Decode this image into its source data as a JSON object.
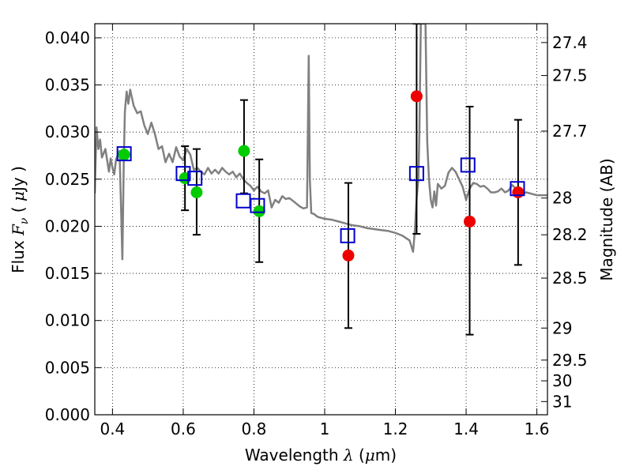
{
  "chart_data": {
    "type": "scatter",
    "x_label": "Wavelength λ (μm)",
    "y_label": "Flux F_ν (μJy)",
    "y2_label": "Magnitude (AB)",
    "xlim": [
      0.35,
      1.63
    ],
    "ylim": [
      0.0,
      0.0415
    ],
    "grid": true,
    "x_ticks": [
      0.4,
      0.6,
      0.8,
      1.0,
      1.2,
      1.4,
      1.6
    ],
    "x_tick_labels": [
      "0.4",
      "0.6",
      "0.8",
      "1",
      "1.2",
      "1.4",
      "1.6"
    ],
    "y_ticks": [
      0.0,
      0.005,
      0.01,
      0.015,
      0.02,
      0.025,
      0.03,
      0.035,
      0.04
    ],
    "y_tick_labels": [
      "0.000",
      "0.005",
      "0.010",
      "0.015",
      "0.020",
      "0.025",
      "0.030",
      "0.035",
      "0.040"
    ],
    "mag_ticks": [
      {
        "flux": 0.0395,
        "label": "27.4"
      },
      {
        "flux": 0.036,
        "label": "27.5"
      },
      {
        "flux": 0.0301,
        "label": "27.7"
      },
      {
        "flux": 0.023,
        "label": "28"
      },
      {
        "flux": 0.0191,
        "label": "28.2"
      },
      {
        "flux": 0.0145,
        "label": "28.5"
      },
      {
        "flux": 0.0092,
        "label": "29"
      },
      {
        "flux": 0.0058,
        "label": "29.5"
      },
      {
        "flux": 0.0036,
        "label": "30"
      },
      {
        "flux": 0.0014,
        "label": "31"
      }
    ],
    "model_spectrum": {
      "color": "#808080",
      "points": [
        [
          0.35,
          0.0235
        ],
        [
          0.355,
          0.0305
        ],
        [
          0.36,
          0.0282
        ],
        [
          0.365,
          0.0292
        ],
        [
          0.37,
          0.0273
        ],
        [
          0.38,
          0.0282
        ],
        [
          0.39,
          0.0258
        ],
        [
          0.395,
          0.0272
        ],
        [
          0.4,
          0.0262
        ],
        [
          0.405,
          0.0255
        ],
        [
          0.41,
          0.0271
        ],
        [
          0.42,
          0.028
        ],
        [
          0.425,
          0.0208
        ],
        [
          0.428,
          0.0165
        ],
        [
          0.432,
          0.027
        ],
        [
          0.435,
          0.0322
        ],
        [
          0.44,
          0.0343
        ],
        [
          0.445,
          0.033
        ],
        [
          0.45,
          0.0345
        ],
        [
          0.46,
          0.0328
        ],
        [
          0.47,
          0.032
        ],
        [
          0.48,
          0.0322
        ],
        [
          0.49,
          0.0307
        ],
        [
          0.5,
          0.0298
        ],
        [
          0.51,
          0.031
        ],
        [
          0.52,
          0.0298
        ],
        [
          0.53,
          0.0282
        ],
        [
          0.54,
          0.0285
        ],
        [
          0.55,
          0.0268
        ],
        [
          0.56,
          0.0277
        ],
        [
          0.57,
          0.0268
        ],
        [
          0.58,
          0.0284
        ],
        [
          0.59,
          0.0274
        ],
        [
          0.6,
          0.027
        ],
        [
          0.61,
          0.0282
        ],
        [
          0.62,
          0.0276
        ],
        [
          0.63,
          0.026
        ],
        [
          0.64,
          0.0262
        ],
        [
          0.65,
          0.0258
        ],
        [
          0.66,
          0.0255
        ],
        [
          0.67,
          0.0262
        ],
        [
          0.68,
          0.0256
        ],
        [
          0.69,
          0.026
        ],
        [
          0.7,
          0.0256
        ],
        [
          0.71,
          0.0262
        ],
        [
          0.72,
          0.0258
        ],
        [
          0.73,
          0.0255
        ],
        [
          0.74,
          0.0258
        ],
        [
          0.75,
          0.0252
        ],
        [
          0.76,
          0.0256
        ],
        [
          0.77,
          0.025
        ],
        [
          0.78,
          0.0246
        ],
        [
          0.79,
          0.0243
        ],
        [
          0.8,
          0.0238
        ],
        [
          0.81,
          0.0242
        ],
        [
          0.82,
          0.0237
        ],
        [
          0.83,
          0.0235
        ],
        [
          0.84,
          0.0238
        ],
        [
          0.85,
          0.022
        ],
        [
          0.86,
          0.0228
        ],
        [
          0.87,
          0.0225
        ],
        [
          0.88,
          0.0232
        ],
        [
          0.89,
          0.0229
        ],
        [
          0.9,
          0.023
        ],
        [
          0.91,
          0.0227
        ],
        [
          0.92,
          0.0224
        ],
        [
          0.93,
          0.0221
        ],
        [
          0.94,
          0.0219
        ],
        [
          0.95,
          0.022
        ],
        [
          0.955,
          0.0381
        ],
        [
          0.958,
          0.025
        ],
        [
          0.962,
          0.0214
        ],
        [
          0.97,
          0.0213
        ],
        [
          0.98,
          0.021
        ],
        [
          1.0,
          0.0208
        ],
        [
          1.02,
          0.0207
        ],
        [
          1.04,
          0.0205
        ],
        [
          1.06,
          0.0203
        ],
        [
          1.08,
          0.0201
        ],
        [
          1.1,
          0.02
        ],
        [
          1.12,
          0.0198
        ],
        [
          1.14,
          0.0197
        ],
        [
          1.16,
          0.0196
        ],
        [
          1.18,
          0.0195
        ],
        [
          1.2,
          0.0193
        ],
        [
          1.22,
          0.019
        ],
        [
          1.24,
          0.0185
        ],
        [
          1.25,
          0.0173
        ],
        [
          1.255,
          0.0195
        ],
        [
          1.26,
          0.023
        ],
        [
          1.265,
          0.025
        ],
        [
          1.268,
          0.03
        ],
        [
          1.272,
          0.0415
        ],
        [
          1.285,
          0.0415
        ],
        [
          1.29,
          0.029
        ],
        [
          1.295,
          0.025
        ],
        [
          1.3,
          0.0228
        ],
        [
          1.305,
          0.022
        ],
        [
          1.31,
          0.0237
        ],
        [
          1.315,
          0.0222
        ],
        [
          1.32,
          0.0245
        ],
        [
          1.33,
          0.024
        ],
        [
          1.34,
          0.0243
        ],
        [
          1.35,
          0.0257
        ],
        [
          1.36,
          0.0262
        ],
        [
          1.37,
          0.0258
        ],
        [
          1.38,
          0.025
        ],
        [
          1.39,
          0.0242
        ],
        [
          1.4,
          0.0228
        ],
        [
          1.41,
          0.024
        ],
        [
          1.42,
          0.0246
        ],
        [
          1.43,
          0.0245
        ],
        [
          1.44,
          0.0242
        ],
        [
          1.45,
          0.0243
        ],
        [
          1.46,
          0.024
        ],
        [
          1.47,
          0.0236
        ],
        [
          1.48,
          0.0236
        ],
        [
          1.49,
          0.0237
        ],
        [
          1.5,
          0.024
        ],
        [
          1.51,
          0.0236
        ],
        [
          1.52,
          0.0238
        ],
        [
          1.53,
          0.0244
        ],
        [
          1.54,
          0.024
        ],
        [
          1.55,
          0.0238
        ],
        [
          1.56,
          0.0235
        ],
        [
          1.57,
          0.0236
        ],
        [
          1.58,
          0.0235
        ],
        [
          1.59,
          0.0234
        ],
        [
          1.6,
          0.0233
        ],
        [
          1.63,
          0.0233
        ]
      ]
    },
    "series": [
      {
        "marker": "square",
        "color": "#0000cc",
        "points": [
          [
            0.433,
            0.0277
          ],
          [
            0.6,
            0.0256
          ],
          [
            0.633,
            0.0251
          ],
          [
            0.77,
            0.0227
          ],
          [
            0.81,
            0.0222
          ],
          [
            1.065,
            0.019
          ],
          [
            1.26,
            0.0256
          ],
          [
            1.405,
            0.0265
          ],
          [
            1.545,
            0.024
          ]
        ]
      },
      {
        "marker": "circle",
        "color": "#00cc00",
        "points": [
          [
            0.433,
            0.0276
          ],
          [
            0.605,
            0.0251
          ],
          [
            0.638,
            0.0236
          ],
          [
            0.772,
            0.028
          ],
          [
            0.815,
            0.0216
          ]
        ],
        "errors": [
          [
            0.605,
            0.0217,
            0.0285
          ],
          [
            0.638,
            0.0191,
            0.0282
          ],
          [
            0.772,
            0.0235,
            0.0334
          ],
          [
            0.815,
            0.0162,
            0.0271
          ]
        ]
      },
      {
        "marker": "circle",
        "color": "#ee0000",
        "points": [
          [
            1.067,
            0.0169
          ],
          [
            1.26,
            0.0338
          ],
          [
            1.41,
            0.0205
          ],
          [
            1.547,
            0.0236
          ]
        ],
        "errors": [
          [
            1.067,
            0.0092,
            0.0246
          ],
          [
            1.26,
            0.0192,
            0.0415
          ],
          [
            1.41,
            0.0085,
            0.0327
          ],
          [
            1.547,
            0.0159,
            0.0313
          ]
        ]
      }
    ]
  }
}
